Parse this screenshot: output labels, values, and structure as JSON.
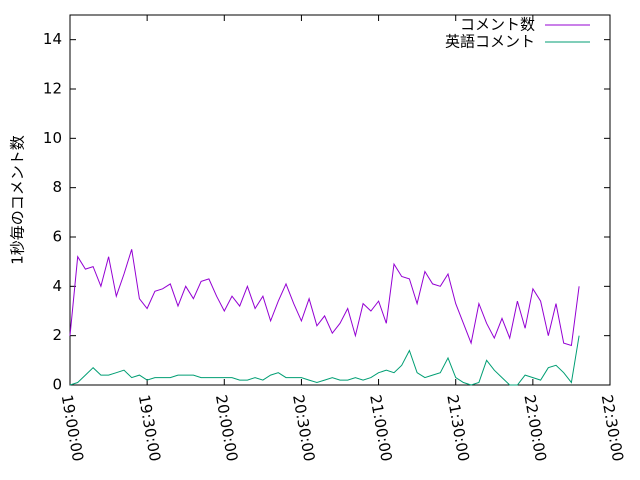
{
  "chart_data": {
    "type": "line",
    "ylabel": "1秒毎のコメント数",
    "xlim": [
      "19:00:00",
      "22:30:00"
    ],
    "xticks": [
      "19:00:00",
      "19:30:00",
      "20:00:00",
      "20:30:00",
      "21:00:00",
      "21:30:00",
      "22:00:00",
      "22:30:00"
    ],
    "ylim": [
      0,
      15
    ],
    "yticks": [
      0,
      2,
      4,
      6,
      8,
      10,
      12,
      14
    ],
    "grid": false,
    "legend": "top-right",
    "x": [
      "19:00:00",
      "19:03:00",
      "19:06:00",
      "19:09:00",
      "19:12:00",
      "19:15:00",
      "19:18:00",
      "19:21:00",
      "19:24:00",
      "19:27:00",
      "19:30:00",
      "19:33:00",
      "19:36:00",
      "19:39:00",
      "19:42:00",
      "19:45:00",
      "19:48:00",
      "19:51:00",
      "19:54:00",
      "19:57:00",
      "20:00:00",
      "20:03:00",
      "20:06:00",
      "20:09:00",
      "20:12:00",
      "20:15:00",
      "20:18:00",
      "20:21:00",
      "20:24:00",
      "20:27:00",
      "20:30:00",
      "20:33:00",
      "20:36:00",
      "20:39:00",
      "20:42:00",
      "20:45:00",
      "20:48:00",
      "20:51:00",
      "20:54:00",
      "20:57:00",
      "21:00:00",
      "21:03:00",
      "21:06:00",
      "21:09:00",
      "21:12:00",
      "21:15:00",
      "21:18:00",
      "21:21:00",
      "21:24:00",
      "21:27:00",
      "21:30:00",
      "21:33:00",
      "21:36:00",
      "21:39:00",
      "21:42:00",
      "21:45:00",
      "21:48:00",
      "21:51:00",
      "21:54:00",
      "21:57:00",
      "22:00:00",
      "22:03:00",
      "22:06:00",
      "22:09:00",
      "22:12:00",
      "22:15:00",
      "22:18:00"
    ],
    "series": [
      {
        "name": "コメント数",
        "color": "#9400d3",
        "values": [
          2.0,
          5.2,
          4.7,
          4.8,
          4.0,
          5.2,
          3.6,
          4.5,
          5.5,
          3.5,
          3.1,
          3.8,
          3.9,
          4.1,
          3.2,
          4.0,
          3.5,
          4.2,
          4.3,
          3.6,
          3.0,
          3.6,
          3.2,
          4.0,
          3.1,
          3.6,
          2.6,
          3.4,
          4.1,
          3.3,
          2.6,
          3.5,
          2.4,
          2.8,
          2.1,
          2.5,
          3.1,
          2.0,
          3.3,
          3.0,
          3.4,
          2.5,
          4.9,
          4.4,
          4.3,
          3.3,
          4.6,
          4.1,
          4.0,
          4.5,
          3.3,
          2.5,
          1.7,
          3.3,
          2.5,
          1.9,
          2.7,
          1.9,
          3.4,
          2.3,
          3.9,
          3.4,
          2.0,
          3.3,
          1.7,
          1.6,
          4.0
        ]
      },
      {
        "name": "英語コメント",
        "color": "#009e73",
        "values": [
          0,
          0.1,
          0.4,
          0.7,
          0.4,
          0.4,
          0.5,
          0.6,
          0.3,
          0.4,
          0.2,
          0.3,
          0.3,
          0.3,
          0.4,
          0.4,
          0.4,
          0.3,
          0.3,
          0.3,
          0.3,
          0.3,
          0.2,
          0.2,
          0.3,
          0.2,
          0.4,
          0.5,
          0.3,
          0.3,
          0.3,
          0.2,
          0.1,
          0.2,
          0.3,
          0.2,
          0.2,
          0.3,
          0.2,
          0.3,
          0.5,
          0.6,
          0.5,
          0.8,
          1.4,
          0.5,
          0.3,
          0.4,
          0.5,
          1.1,
          0.3,
          0.1,
          0.0,
          0.1,
          1.0,
          0.6,
          0.3,
          0.0,
          0.0,
          0.4,
          0.3,
          0.2,
          0.7,
          0.8,
          0.5,
          0.1,
          2.0
        ]
      }
    ]
  }
}
